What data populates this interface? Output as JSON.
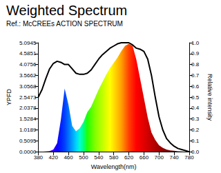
{
  "chart_data": {
    "type": "line",
    "title": "Weighted Spectrum",
    "subtitle": "Ref.: McCREEs ACTION SPECTRUM",
    "x_label": "Wavelength(nm)",
    "y_label": "YPFD",
    "y2_label": "Relative intensity",
    "grid": false,
    "x": [
      380,
      390,
      400,
      410,
      420,
      430,
      440,
      450,
      460,
      470,
      480,
      490,
      500,
      510,
      520,
      530,
      540,
      550,
      560,
      570,
      580,
      590,
      600,
      610,
      620,
      630,
      640,
      650,
      660,
      670,
      680,
      690,
      700,
      710,
      720,
      730,
      740,
      750,
      760,
      770,
      780
    ],
    "xlim": [
      380,
      780
    ],
    "xticks": [
      380,
      420,
      460,
      500,
      540,
      580,
      620,
      660,
      700,
      740,
      780
    ],
    "ylim": [
      0,
      5.0945
    ],
    "yticks": [
      {
        "value": 0,
        "label": "0.0000"
      },
      0.5095,
      1.0189,
      1.5284,
      2.0378,
      2.5473,
      3.0568,
      3.5662,
      4.0756,
      4.5851,
      5.0945
    ],
    "y2lim": [
      0,
      1
    ],
    "y2ticks": [
      {
        "value": 0,
        "label": "0.0"
      },
      0.1,
      0.2,
      0.3,
      0.4,
      0.5,
      0.6,
      0.7,
      0.8,
      0.9,
      {
        "value": 1,
        "label": "1.0"
      }
    ],
    "series": [
      {
        "type": "area",
        "values": [
          0.0,
          0.0,
          0.01,
          0.03,
          0.1,
          0.4,
          1.5,
          2.95,
          2.2,
          1.2,
          0.95,
          1.1,
          1.4,
          1.85,
          2.1,
          2.5,
          2.9,
          3.25,
          3.6,
          3.9,
          4.15,
          4.4,
          4.7,
          4.95,
          5.05,
          4.95,
          4.3,
          3.4,
          2.5,
          1.6,
          0.9,
          0.55,
          0.3,
          0.18,
          0.1,
          0.06,
          0.04,
          0.02,
          0.01,
          0.0,
          0.0
        ],
        "colors": [
          "#7a0099",
          "#7000c0",
          "#6000e0",
          "#4a00ff",
          "#3000ff",
          "#1000ff",
          "#0020ff",
          "#0040ff",
          "#0070ff",
          "#00a0ff",
          "#00d0ff",
          "#00ffd0",
          "#00ff80",
          "#20ff00",
          "#50ff00",
          "#80ff00",
          "#a0ff00",
          "#c0ff00",
          "#e0ff00",
          "#ffff00",
          "#ffe000",
          "#ffc000",
          "#ffa000",
          "#ff7000",
          "#ff4000",
          "#ff2000",
          "#ff0000",
          "#f00000",
          "#e00000",
          "#d00000",
          "#c00000",
          "#b00000",
          "#a00000",
          "#900000",
          "#800000",
          "#700000",
          "#600000",
          "#500000",
          "#400000",
          "#300000",
          "#200000"
        ]
      },
      {
        "type": "line",
        "axis": "y2",
        "color": "#000000",
        "values": [
          0.5,
          0.57,
          0.67,
          0.76,
          0.81,
          0.83,
          0.82,
          0.8,
          0.8,
          0.76,
          0.72,
          0.71,
          0.71,
          0.72,
          0.75,
          0.8,
          0.85,
          0.89,
          0.92,
          0.95,
          0.97,
          0.99,
          1.0,
          1.0,
          1.0,
          0.98,
          0.95,
          0.94,
          0.92,
          0.85,
          0.7,
          0.5,
          0.32,
          0.2,
          0.12,
          0.08,
          0.05,
          0.03,
          0.02,
          0.01,
          0.0
        ]
      }
    ]
  }
}
